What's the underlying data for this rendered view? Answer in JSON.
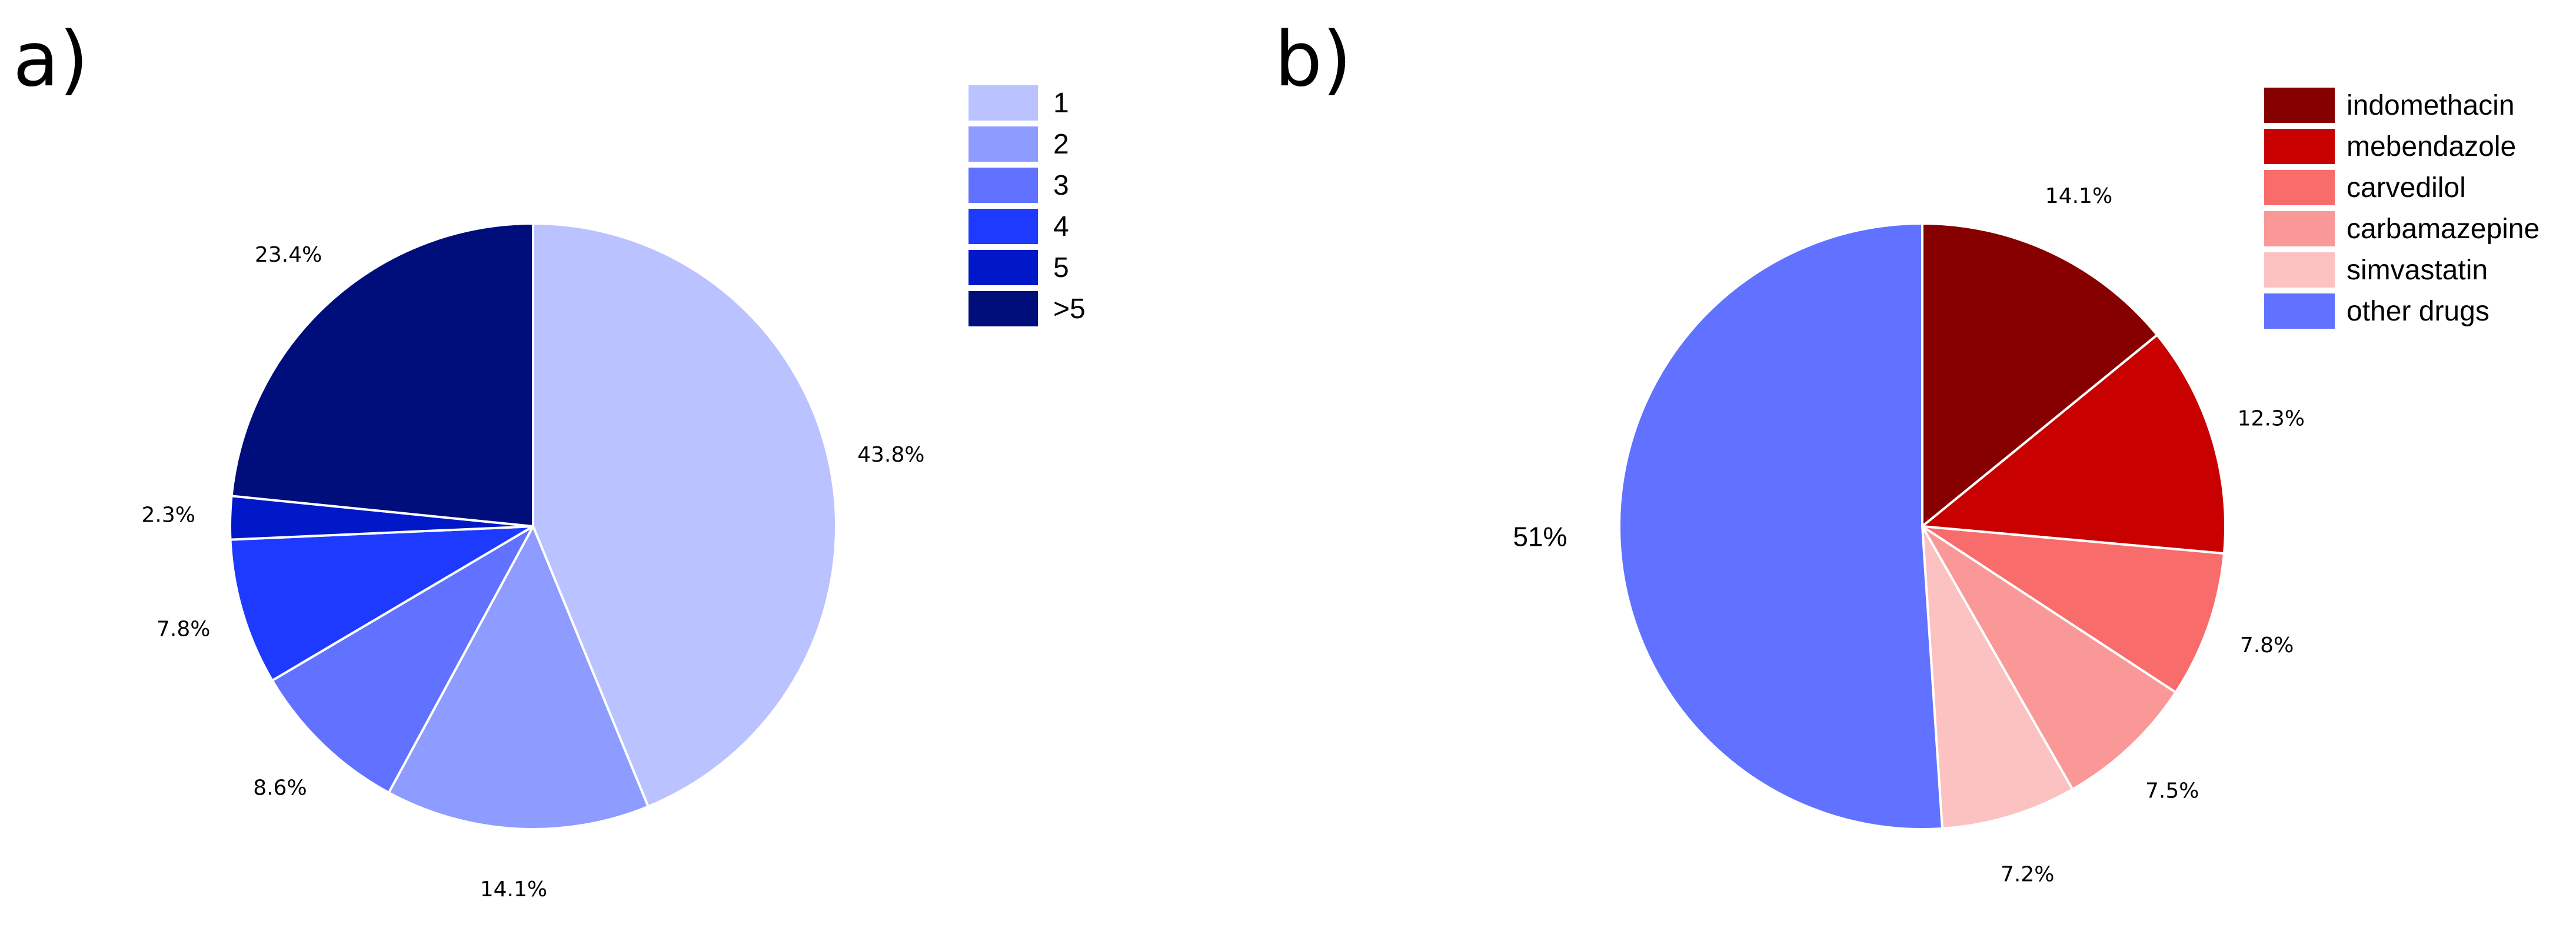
{
  "chart_data": [
    {
      "type": "pie",
      "panel_label": "a)",
      "title": "",
      "categories": [
        "1",
        "2",
        "3",
        "4",
        "5",
        ">5"
      ],
      "values": [
        43.8,
        14.1,
        8.6,
        7.8,
        2.3,
        23.4
      ],
      "value_labels": [
        "43.8%",
        "14.1%",
        "8.6%",
        "7.8%",
        "2.3%",
        "23.4%"
      ],
      "colors": [
        "#BAC2FF",
        "#8E9BFF",
        "#6072FF",
        "#1F3AFF",
        "#0018C8",
        "#000E7C"
      ],
      "start_angle_deg": 0,
      "direction": "clockwise",
      "legend_position": "top-right"
    },
    {
      "type": "pie",
      "panel_label": "b)",
      "title": "",
      "categories": [
        "indomethacin",
        "mebendazole",
        "carvedilol",
        "carbamazepine",
        "simvastatin",
        "other drugs"
      ],
      "values": [
        14.1,
        12.3,
        7.8,
        7.5,
        7.2,
        51
      ],
      "value_labels": [
        "14.1%",
        "12.3%",
        "7.8%",
        "7.5%",
        "7.2%",
        "51%"
      ],
      "colors": [
        "#870000",
        "#C80000",
        "#F86C6C",
        "#FA9898",
        "#FCC2C2",
        "#6072FF"
      ],
      "start_angle_deg": 0,
      "direction": "clockwise",
      "legend_position": "top-right"
    }
  ]
}
